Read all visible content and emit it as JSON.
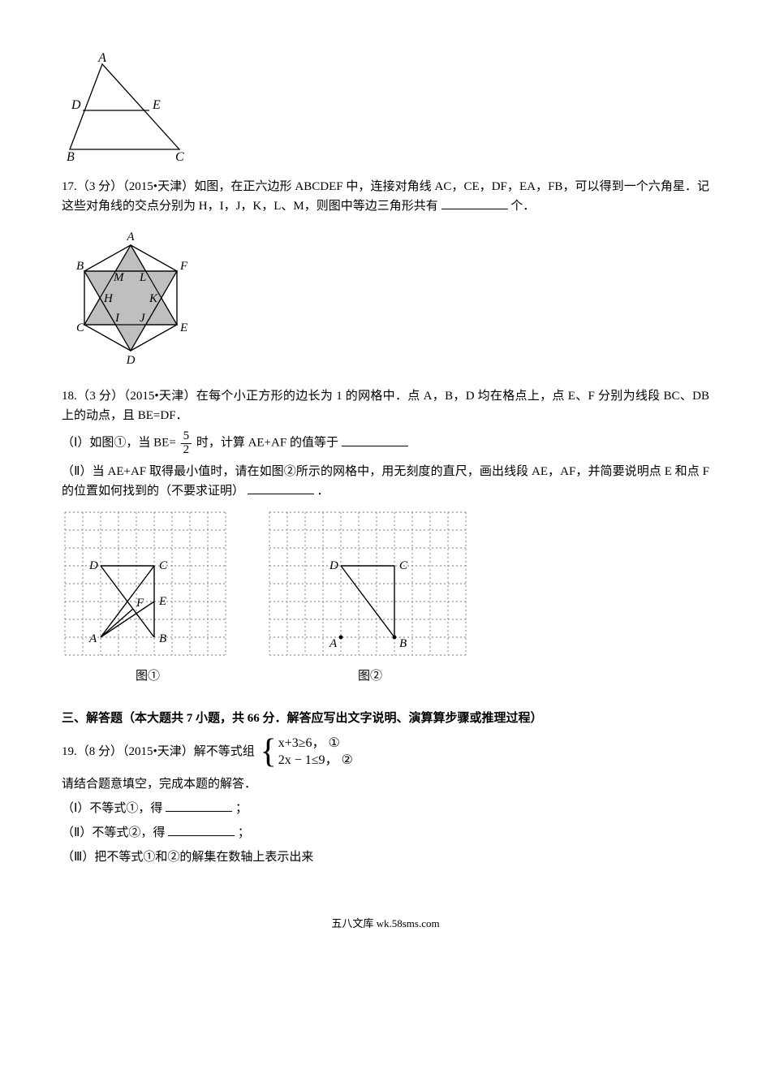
{
  "triangle_fig": {
    "labels": {
      "A": "A",
      "B": "B",
      "C": "C",
      "D": "D",
      "E": "E"
    },
    "stroke": "#000000",
    "label_font_italic": true
  },
  "q17": {
    "text_prefix": "17.（3 分）（2015•天津）如图，在正六边形 ABCDEF 中，连接对角线 AC，CE，DF，EA，FB，可以得到一个六角星．记这些对角线的交点分别为 H，I，J，K，L、M，则图中等边三角形共有",
    "text_suffix": "个．",
    "hexagram": {
      "outer_labels": [
        "A",
        "B",
        "C",
        "D",
        "E",
        "F"
      ],
      "inner_labels": [
        "M",
        "L",
        "H",
        "K",
        "I",
        "J"
      ],
      "fill": "#bfbfbf",
      "stroke": "#000000"
    }
  },
  "q18": {
    "text_line1": "18.（3 分）（2015•天津）在每个小正方形的边长为 1 的网格中．点 A，B，D 均在格点上，点 E、F 分别为线段 BC、DB 上的动点，且 BE=DF．",
    "part1_prefix": "（Ⅰ）如图①，当 BE=",
    "frac_num": "5",
    "frac_den": "2",
    "part1_suffix": "时，计算 AE+AF 的值等于",
    "part2": "（Ⅱ）当 AE+AF 取得最小值时，请在如图②所示的网格中，用无刻度的直尺，画出线段 AE，AF，并简要说明点 E 和点 F 的位置如何找到的（不要求证明）",
    "part2_suffix": "．",
    "grid": {
      "cell": 22,
      "cols": 9,
      "rows": 8,
      "dash_color": "#7a7a7a",
      "solid_color": "#000000",
      "caption1": "图①",
      "caption2": "图②",
      "labels1": {
        "A": "A",
        "B": "B",
        "C": "C",
        "D": "D",
        "E": "E",
        "F": "F"
      },
      "labels2": {
        "A": "A",
        "B": "B",
        "C": "C",
        "D": "D"
      }
    }
  },
  "section3": {
    "title": "三、解答题（本大题共 7 小题，共 66 分．解答应写出文字说明、演算算步骤或推理过程）"
  },
  "q19": {
    "prefix": "19.（8 分）（2015•天津）解不等式组",
    "line1": "x+3≥6，",
    "c1": "①",
    "line2": "2x − 1≤9，",
    "c2": "②",
    "sub_intro": "请结合题意填空，完成本题的解答．",
    "p1": "（Ⅰ）不等式①，得",
    "p1_suffix": "；",
    "p2": "（Ⅱ）不等式②，得",
    "p2_suffix": "；",
    "p3": "（Ⅲ）把不等式①和②的解集在数轴上表示出来"
  },
  "footer": "五八文库 wk.58sms.com"
}
